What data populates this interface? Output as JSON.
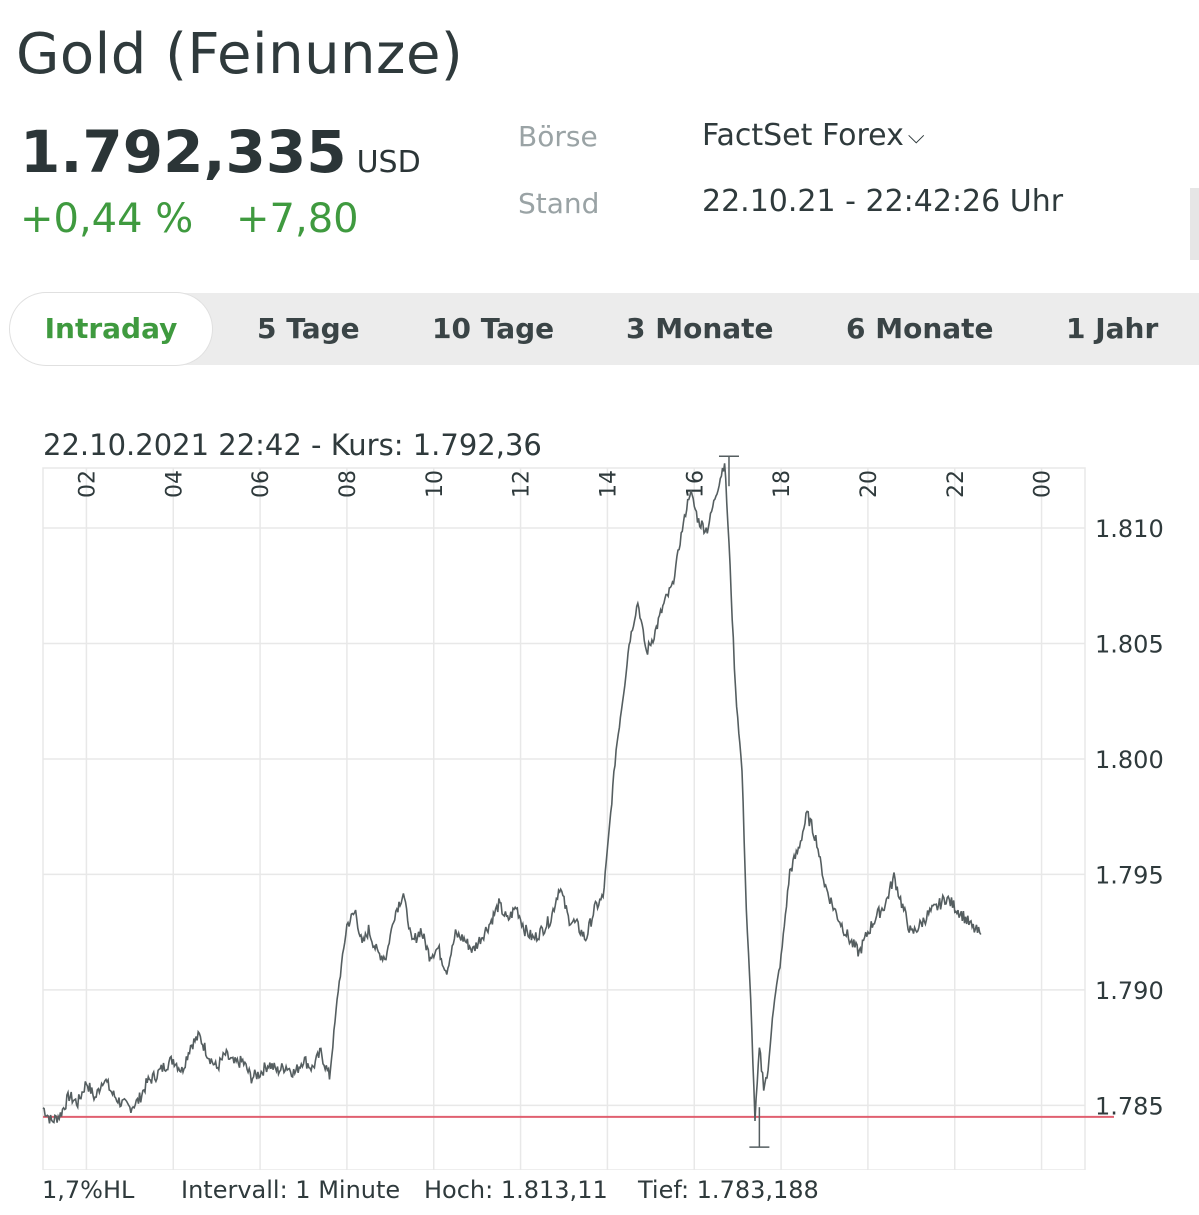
{
  "header": {
    "title": "Gold (Feinunze)",
    "price": "1.792,335",
    "currency": "USD",
    "change_pct": "+0,44 %",
    "change_abs": "+7,80"
  },
  "meta": {
    "exchange_label": "Börse",
    "exchange_value": "FactSet Forex",
    "date_label": "Stand",
    "date_value": "22.10.21 -  22:42:26 Uhr"
  },
  "tabs": [
    "Intraday",
    "5 Tage",
    "10 Tage",
    "3 Monate",
    "6 Monate",
    "1 Jahr"
  ],
  "active_tab": "Intraday",
  "colors": {
    "accent": "#3f9a3f",
    "line": "#555e60",
    "reference": "#e06070",
    "grid": "#e8e8e8"
  },
  "chart_data": {
    "type": "line",
    "info": "22.10.2021 22:42  -  Kurs: 1.792,36",
    "x_ticks": [
      "02",
      "04",
      "06",
      "08",
      "10",
      "12",
      "14",
      "16",
      "18",
      "20",
      "22",
      "00"
    ],
    "y_ticks": [
      "1.810",
      "1.805",
      "1.800",
      "1.795",
      "1.790",
      "1.785"
    ],
    "ylim": [
      1782.2,
      1812.6
    ],
    "xlim": [
      1,
      25
    ],
    "reference_line": 1784.5,
    "high": 1813.11,
    "low": 1783.188,
    "x_unit": "hour",
    "series": [
      {
        "x": [
          1.0,
          1.2,
          1.4,
          1.6,
          1.8,
          2.0,
          2.2,
          2.4,
          2.6,
          2.8,
          3.0,
          3.2,
          3.4,
          3.6,
          3.8,
          4.0,
          4.2,
          4.4,
          4.6,
          4.8,
          5.0,
          5.2,
          5.4,
          5.6,
          5.8,
          6.0,
          6.2,
          6.4,
          6.6,
          6.8,
          7.0,
          7.2,
          7.4,
          7.6,
          7.8,
          8.0,
          8.2,
          8.35,
          8.5,
          8.7,
          8.9,
          9.1,
          9.3,
          9.5,
          9.7,
          9.9,
          10.1,
          10.3,
          10.5,
          10.7,
          10.9,
          11.1,
          11.3,
          11.5,
          11.7,
          11.9,
          12.1,
          12.3,
          12.5,
          12.7,
          12.9,
          13.1,
          13.3,
          13.5,
          13.7,
          13.9,
          14.0,
          14.1,
          14.2,
          14.4,
          14.5,
          14.7,
          14.9,
          15.1,
          15.3,
          15.5,
          15.7,
          15.9,
          16.1,
          16.3,
          16.5,
          16.7,
          16.8,
          16.95,
          17.1,
          17.2,
          17.3,
          17.4,
          17.5,
          17.6,
          17.7,
          17.8,
          18.0,
          18.2,
          18.4,
          18.6,
          18.8,
          19.0,
          19.2,
          19.4,
          19.6,
          19.8,
          20.0,
          20.2,
          20.4,
          20.6,
          20.8,
          21.0,
          21.2,
          21.4,
          21.6,
          21.8,
          22.0,
          22.2,
          22.4,
          22.6
        ],
        "y": [
          1784.9,
          1784.3,
          1784.6,
          1785.4,
          1785.1,
          1786.0,
          1785.3,
          1786.2,
          1785.5,
          1785.1,
          1784.9,
          1785.2,
          1786.0,
          1786.3,
          1786.7,
          1787.0,
          1786.5,
          1787.6,
          1788.0,
          1787.2,
          1786.6,
          1787.2,
          1786.8,
          1786.9,
          1786.2,
          1786.4,
          1786.8,
          1786.5,
          1786.7,
          1786.4,
          1787.0,
          1786.6,
          1787.3,
          1786.2,
          1790.0,
          1792.8,
          1793.4,
          1791.9,
          1792.6,
          1791.6,
          1791.4,
          1793.3,
          1794.2,
          1792.0,
          1792.6,
          1791.5,
          1791.8,
          1790.8,
          1792.4,
          1792.2,
          1791.7,
          1792.3,
          1792.9,
          1793.7,
          1793.0,
          1793.6,
          1792.6,
          1792.2,
          1792.6,
          1793.1,
          1794.5,
          1793.1,
          1792.8,
          1792.2,
          1793.5,
          1794.0,
          1796.0,
          1798.2,
          1800.4,
          1803.3,
          1805.0,
          1806.8,
          1804.6,
          1805.5,
          1806.7,
          1807.5,
          1809.7,
          1811.6,
          1810.3,
          1809.9,
          1811.5,
          1812.9,
          1809.3,
          1803.0,
          1799.5,
          1793.5,
          1789.5,
          1784.4,
          1787.4,
          1785.9,
          1786.4,
          1788.9,
          1791.4,
          1795.1,
          1796.1,
          1797.6,
          1796.6,
          1794.6,
          1793.6,
          1792.8,
          1792.1,
          1791.6,
          1792.5,
          1793.2,
          1793.7,
          1794.9,
          1793.6,
          1792.4,
          1792.8,
          1793.3,
          1793.6,
          1794.0,
          1793.6,
          1793.2,
          1792.7,
          1792.4
        ]
      }
    ]
  },
  "footer": {
    "range": "1,7%HL",
    "interval": "Intervall: 1 Minute",
    "high": "Hoch:  1.813,11",
    "low": "Tief: 1.783,188"
  }
}
